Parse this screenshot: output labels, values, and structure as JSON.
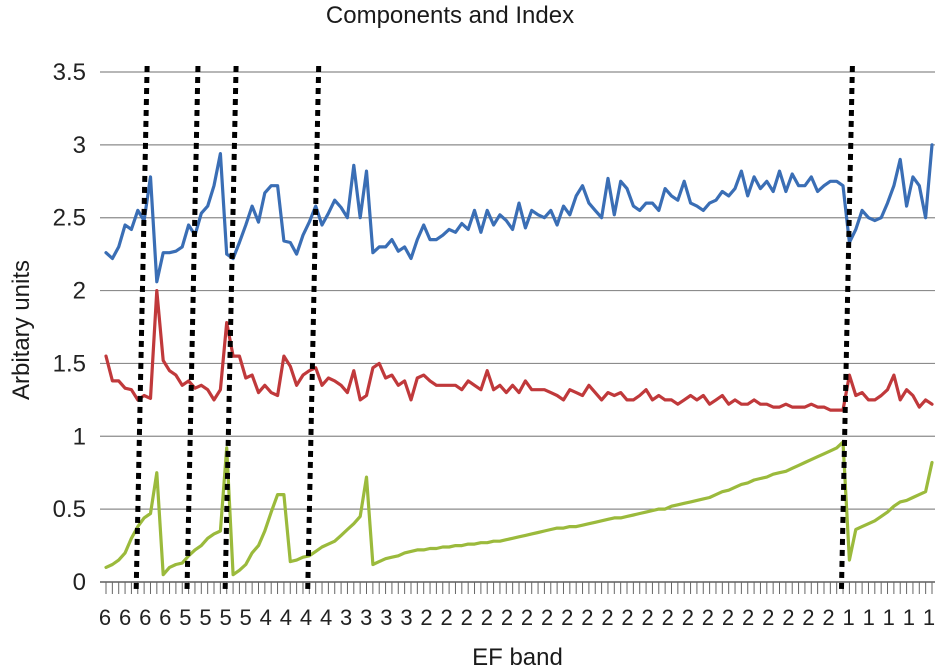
{
  "chart_data": {
    "type": "line",
    "title": "Components and Index",
    "xlabel": "EF band",
    "ylabel": "Arbitary units",
    "ylim": [
      0,
      3.5
    ],
    "yticks": [
      "0",
      "0.5",
      "1",
      "1.5",
      "2",
      "2.5",
      "3",
      "3.5"
    ],
    "x_tick_labels": [
      "6",
      "6",
      "6",
      "6",
      "5",
      "5",
      "5",
      "5",
      "4",
      "4",
      "4",
      "4",
      "3",
      "3",
      "3",
      "3",
      "2",
      "2",
      "2",
      "2",
      "2",
      "2",
      "2",
      "2",
      "2",
      "2",
      "2",
      "2",
      "2",
      "2",
      "2",
      "2",
      "2",
      "2",
      "2",
      "2",
      "2",
      "1",
      "1",
      "1",
      "1",
      "1"
    ],
    "grid": true,
    "legend": "none",
    "band_boundaries": [
      6,
      14,
      20,
      33,
      117
    ],
    "series": [
      {
        "color": "#3a6eb5",
        "values": [
          2.26,
          2.22,
          2.3,
          2.45,
          2.42,
          2.55,
          2.48,
          2.78,
          2.06,
          2.26,
          2.26,
          2.27,
          2.3,
          2.45,
          2.38,
          2.53,
          2.58,
          2.72,
          2.94,
          2.25,
          2.22,
          2.33,
          2.45,
          2.58,
          2.47,
          2.67,
          2.72,
          2.72,
          2.34,
          2.33,
          2.25,
          2.38,
          2.47,
          2.58,
          2.45,
          2.53,
          2.62,
          2.57,
          2.5,
          2.86,
          2.5,
          2.82,
          2.26,
          2.3,
          2.3,
          2.35,
          2.27,
          2.3,
          2.22,
          2.35,
          2.45,
          2.35,
          2.35,
          2.38,
          2.42,
          2.4,
          2.46,
          2.42,
          2.55,
          2.4,
          2.55,
          2.45,
          2.52,
          2.48,
          2.42,
          2.6,
          2.43,
          2.55,
          2.52,
          2.5,
          2.55,
          2.45,
          2.58,
          2.52,
          2.65,
          2.72,
          2.6,
          2.55,
          2.5,
          2.77,
          2.52,
          2.75,
          2.7,
          2.58,
          2.55,
          2.6,
          2.6,
          2.55,
          2.7,
          2.65,
          2.62,
          2.75,
          2.6,
          2.58,
          2.55,
          2.6,
          2.62,
          2.68,
          2.65,
          2.7,
          2.82,
          2.65,
          2.78,
          2.7,
          2.75,
          2.68,
          2.82,
          2.68,
          2.8,
          2.72,
          2.72,
          2.78,
          2.68,
          2.72,
          2.75,
          2.75,
          2.72,
          2.33,
          2.42,
          2.55,
          2.5,
          2.48,
          2.5,
          2.6,
          2.72,
          2.9,
          2.58,
          2.78,
          2.72,
          2.5,
          3.0
        ]
      },
      {
        "color": "#c0393b",
        "values": [
          1.55,
          1.38,
          1.38,
          1.33,
          1.32,
          1.25,
          1.28,
          1.26,
          2.0,
          1.52,
          1.45,
          1.42,
          1.35,
          1.38,
          1.33,
          1.35,
          1.32,
          1.25,
          1.32,
          1.78,
          1.55,
          1.55,
          1.4,
          1.42,
          1.3,
          1.35,
          1.3,
          1.28,
          1.55,
          1.48,
          1.35,
          1.42,
          1.45,
          1.47,
          1.35,
          1.4,
          1.38,
          1.35,
          1.3,
          1.45,
          1.25,
          1.28,
          1.47,
          1.5,
          1.4,
          1.42,
          1.35,
          1.38,
          1.25,
          1.4,
          1.42,
          1.38,
          1.35,
          1.35,
          1.35,
          1.35,
          1.32,
          1.38,
          1.35,
          1.32,
          1.45,
          1.32,
          1.35,
          1.3,
          1.35,
          1.3,
          1.38,
          1.32,
          1.32,
          1.32,
          1.3,
          1.28,
          1.25,
          1.32,
          1.3,
          1.28,
          1.35,
          1.3,
          1.25,
          1.3,
          1.28,
          1.3,
          1.25,
          1.25,
          1.28,
          1.32,
          1.25,
          1.28,
          1.25,
          1.25,
          1.22,
          1.25,
          1.28,
          1.25,
          1.28,
          1.22,
          1.25,
          1.28,
          1.22,
          1.25,
          1.22,
          1.22,
          1.25,
          1.22,
          1.22,
          1.2,
          1.2,
          1.22,
          1.2,
          1.2,
          1.2,
          1.22,
          1.2,
          1.2,
          1.18,
          1.18,
          1.18,
          1.42,
          1.28,
          1.3,
          1.25,
          1.25,
          1.28,
          1.32,
          1.42,
          1.25,
          1.32,
          1.28,
          1.2,
          1.25,
          1.22
        ]
      },
      {
        "color": "#9bba3c",
        "values": [
          0.1,
          0.12,
          0.15,
          0.2,
          0.3,
          0.38,
          0.44,
          0.47,
          0.75,
          0.05,
          0.1,
          0.12,
          0.13,
          0.18,
          0.22,
          0.25,
          0.3,
          0.33,
          0.35,
          0.92,
          0.05,
          0.08,
          0.12,
          0.2,
          0.25,
          0.35,
          0.48,
          0.6,
          0.6,
          0.14,
          0.15,
          0.17,
          0.18,
          0.21,
          0.24,
          0.26,
          0.28,
          0.32,
          0.36,
          0.4,
          0.45,
          0.72,
          0.12,
          0.14,
          0.16,
          0.17,
          0.18,
          0.2,
          0.21,
          0.22,
          0.22,
          0.23,
          0.23,
          0.24,
          0.24,
          0.25,
          0.25,
          0.26,
          0.26,
          0.27,
          0.27,
          0.28,
          0.28,
          0.29,
          0.3,
          0.31,
          0.32,
          0.33,
          0.34,
          0.35,
          0.36,
          0.37,
          0.37,
          0.38,
          0.38,
          0.39,
          0.4,
          0.41,
          0.42,
          0.43,
          0.44,
          0.44,
          0.45,
          0.46,
          0.47,
          0.48,
          0.49,
          0.5,
          0.5,
          0.52,
          0.53,
          0.54,
          0.55,
          0.56,
          0.57,
          0.58,
          0.6,
          0.62,
          0.63,
          0.65,
          0.67,
          0.68,
          0.7,
          0.71,
          0.72,
          0.74,
          0.75,
          0.76,
          0.78,
          0.8,
          0.82,
          0.84,
          0.86,
          0.88,
          0.9,
          0.92,
          0.96,
          0.15,
          0.36,
          0.38,
          0.4,
          0.42,
          0.45,
          0.48,
          0.52,
          0.55,
          0.56,
          0.58,
          0.6,
          0.62,
          0.82
        ]
      }
    ]
  }
}
